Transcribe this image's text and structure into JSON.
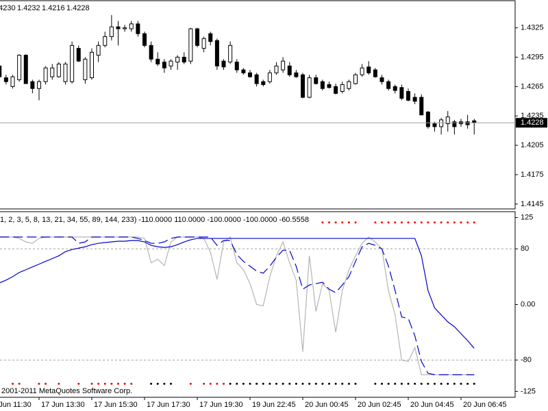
{
  "chart_data": [
    {
      "type": "candlestick",
      "header_values": [
        "1.4230",
        "1.4232",
        "1.4216",
        "1.4228"
      ],
      "categories": [
        "17 Jun 11:30",
        null,
        null,
        null,
        null,
        null,
        null,
        null,
        "17 Jun 13:30",
        null,
        null,
        null,
        null,
        null,
        null,
        null,
        "17 Jun 15:30",
        null,
        null,
        null,
        null,
        null,
        null,
        null,
        "17 Jun 17:30",
        null,
        null,
        null,
        null,
        null,
        null,
        null,
        "17 Jun 19:30",
        null,
        null,
        null,
        null,
        null,
        null,
        null,
        "19 Jun 22:45",
        null,
        null,
        null,
        null,
        null,
        null,
        null,
        "20 Jun 00:45",
        null,
        null,
        null,
        null,
        null,
        null,
        null,
        "20 Jun 02:45",
        null,
        null,
        null,
        null,
        null,
        null,
        null,
        "20 Jun 04:45",
        null,
        null,
        null,
        null,
        null,
        null,
        null,
        "20 Jun 06:45",
        null,
        null
      ],
      "candles": [
        null,
        null,
        [
          1.4286,
          1.4288,
          1.4274,
          1.4275
        ],
        [
          1.4274,
          1.4277,
          1.4267,
          1.427
        ],
        [
          1.4265,
          1.4277,
          1.4263,
          1.4275
        ],
        [
          1.4272,
          1.4298,
          1.427,
          1.4297
        ],
        [
          1.4297,
          1.4298,
          1.4268,
          1.4268
        ],
        [
          1.427,
          1.4272,
          1.4258,
          1.4263
        ],
        [
          1.4263,
          1.4272,
          1.4251,
          1.427
        ],
        [
          1.427,
          1.4286,
          1.4267,
          1.4284
        ],
        [
          1.4275,
          1.4288,
          1.4272,
          1.4284
        ],
        [
          1.4275,
          1.429,
          1.4274,
          1.4288
        ],
        [
          1.427,
          1.429,
          1.4267,
          1.4288
        ],
        [
          1.427,
          1.4311,
          1.4268,
          1.4307
        ],
        [
          1.4304,
          1.4307,
          1.429,
          1.4291
        ],
        [
          1.4272,
          1.4295,
          1.4268,
          1.4293
        ],
        [
          1.4274,
          1.4304,
          1.4272,
          1.43
        ],
        [
          1.4297,
          1.4311,
          1.429,
          1.4307
        ],
        [
          1.4307,
          1.4321,
          1.4305,
          1.4316
        ],
        [
          1.4316,
          1.4338,
          1.4312,
          1.4326
        ],
        [
          1.4326,
          1.4332,
          1.4307,
          1.4324
        ],
        [
          1.4324,
          1.4328,
          1.4321,
          1.4325
        ],
        [
          1.4324,
          1.4332,
          1.4321,
          1.4329
        ],
        [
          1.4329,
          1.4332,
          1.4316,
          1.4319
        ],
        [
          1.4319,
          1.4321,
          1.4305,
          1.4307
        ],
        [
          1.4307,
          1.4311,
          1.429,
          1.4293
        ],
        [
          1.4293,
          1.43,
          1.4286,
          1.4288
        ],
        [
          1.429,
          1.4293,
          1.4279,
          1.4284
        ],
        [
          1.4286,
          1.4293,
          1.4282,
          1.4291
        ],
        [
          1.429,
          1.4297,
          1.4282,
          1.4295
        ],
        [
          1.4295,
          1.43,
          1.4288,
          1.429
        ],
        [
          1.4291,
          1.4325,
          1.4288,
          1.4324
        ],
        [
          1.4324,
          1.4325,
          1.4305,
          1.4307
        ],
        [
          1.4304,
          1.4316,
          1.43,
          1.4314
        ],
        [
          1.4319,
          1.4321,
          1.4307,
          1.4311
        ],
        [
          1.4312,
          1.4314,
          1.4282,
          1.4286
        ],
        [
          1.4291,
          1.4293,
          1.4282,
          1.4285
        ],
        [
          1.429,
          1.4311,
          1.4288,
          1.4307
        ],
        [
          1.429,
          1.4293,
          1.4279,
          1.4282
        ],
        [
          1.4282,
          1.4284,
          1.4277,
          1.4279
        ],
        [
          1.4279,
          1.4282,
          1.4274,
          1.4275
        ],
        [
          1.4277,
          1.4279,
          1.4265,
          1.4268
        ],
        [
          1.427,
          1.4272,
          1.4265,
          1.4267
        ],
        [
          1.427,
          1.4282,
          1.4268,
          1.4279
        ],
        [
          1.4279,
          1.429,
          1.4277,
          1.4286
        ],
        [
          1.4282,
          1.4295,
          1.4279,
          1.4291
        ],
        [
          1.4286,
          1.429,
          1.4275,
          1.4277
        ],
        [
          1.4279,
          1.4282,
          1.4274,
          1.4275
        ],
        [
          1.4277,
          1.4279,
          1.4253,
          1.4254
        ],
        [
          1.4254,
          1.4277,
          1.4253,
          1.4274
        ],
        [
          1.4274,
          1.4277,
          1.4267,
          1.4268
        ],
        [
          1.427,
          1.4272,
          1.4261,
          1.4263
        ],
        [
          1.4267,
          1.427,
          1.4263,
          1.4264
        ],
        [
          1.4265,
          1.4268,
          1.4257,
          1.4258
        ],
        [
          1.426,
          1.427,
          1.4258,
          1.4267
        ],
        [
          1.4263,
          1.4272,
          1.4261,
          1.427
        ],
        [
          1.4268,
          1.4279,
          1.4267,
          1.4277
        ],
        [
          1.4277,
          1.4288,
          1.4275,
          1.4284
        ],
        [
          1.4285,
          1.4291,
          1.4277,
          1.4279
        ],
        [
          1.4282,
          1.4284,
          1.4274,
          1.4275
        ],
        [
          1.4274,
          1.4277,
          1.4267,
          1.427
        ],
        [
          1.427,
          1.4272,
          1.4261,
          1.4263
        ],
        [
          1.4265,
          1.4267,
          1.4258,
          1.4261
        ],
        [
          1.4264,
          1.4267,
          1.4251,
          1.4253
        ],
        [
          1.426,
          1.4263,
          1.425,
          1.4251
        ],
        [
          1.4254,
          1.4258,
          1.4247,
          1.425
        ],
        [
          1.4254,
          1.4257,
          1.4236,
          1.4236
        ],
        [
          1.4239,
          1.424,
          1.4222,
          1.4224
        ],
        [
          1.4227,
          1.4229,
          1.4219,
          1.4224
        ],
        [
          1.4224,
          1.4233,
          1.4216,
          1.4231
        ],
        [
          1.4227,
          1.424,
          1.4219,
          1.4234
        ],
        [
          1.4229,
          1.4231,
          1.4216,
          1.4224
        ],
        [
          1.4229,
          1.4232,
          1.4224,
          1.4227
        ],
        [
          1.4229,
          1.4236,
          1.4222,
          1.4226
        ],
        [
          1.423,
          1.4232,
          1.4216,
          1.4228
        ]
      ],
      "up_color": "#ffffff",
      "down_color": "#000000",
      "last_price_line": true,
      "ylim": [
        1.414,
        1.4352
      ],
      "yticks": [
        1.4325,
        1.4295,
        1.4265,
        1.4235,
        1.4205,
        1.4175,
        1.4145
      ]
    },
    {
      "type": "line",
      "title": "1, 2, 3, 5, 8, 13, 21, 34, 55, 89, 144, 233) -110.0000 110.0000 -100.0000 -100.0000 -60.5558",
      "footer": "2001-2011 MetaQuotes Software Corp.",
      "series": [
        {
          "color": "#b4b4b4",
          "dash": false,
          "values": [
            null,
            null,
            97,
            97,
            97,
            95,
            90,
            88,
            95,
            97,
            97,
            97,
            97,
            97,
            97,
            97,
            97,
            97,
            97,
            97,
            97,
            97,
            97,
            97,
            95,
            60,
            65,
            56,
            90,
            97,
            97,
            97,
            97,
            95,
            75,
            36,
            90,
            97,
            60,
            50,
            30,
            0,
            -2,
            40,
            70,
            90,
            60,
            35,
            -68,
            70,
            -10,
            30,
            20,
            -40,
            20,
            50,
            70,
            88,
            97,
            90,
            80,
            20,
            -15,
            -80,
            -82,
            -62,
            -101,
            -101,
            -101,
            -101,
            -101,
            -101,
            -101,
            -101,
            -101
          ]
        },
        {
          "color": "#0000cc",
          "dash": true,
          "values": [
            null,
            null,
            97,
            97,
            97,
            97,
            97,
            97,
            97,
            97,
            97,
            97,
            97,
            97,
            88,
            90,
            97,
            97,
            97,
            97,
            97,
            97,
            97,
            95,
            92,
            88,
            88,
            90,
            95,
            97,
            97,
            97,
            97,
            97,
            97,
            85,
            92,
            92,
            72,
            62,
            55,
            48,
            45,
            55,
            68,
            78,
            78,
            55,
            22,
            28,
            30,
            32,
            22,
            17,
            28,
            40,
            62,
            83,
            88,
            85,
            80,
            55,
            20,
            -18,
            -20,
            -45,
            -82,
            -99,
            -101,
            -101,
            -101,
            -101,
            -101,
            -101,
            -101
          ]
        },
        {
          "color": "#0000cc",
          "dash": false,
          "values": [
            null,
            null,
            31,
            35,
            40,
            46,
            50,
            54,
            58,
            62,
            66,
            70,
            76,
            79,
            81,
            83,
            86,
            88,
            89,
            90,
            91,
            91,
            92,
            92,
            90,
            85,
            83,
            82,
            83,
            86,
            90,
            93,
            95,
            95,
            95,
            95,
            95,
            95,
            95,
            95,
            95,
            95,
            95,
            95,
            95,
            95,
            95,
            95,
            95,
            95,
            95,
            95,
            95,
            95,
            95,
            95,
            95,
            95,
            95,
            95,
            95,
            95,
            95,
            95,
            95,
            95,
            70,
            20,
            -5,
            -15,
            -25,
            -32,
            -42,
            -52,
            -63
          ]
        }
      ],
      "dots": [
        {
          "color": "#ff0000",
          "values": [
            null,
            null,
            null,
            null,
            null,
            null,
            null,
            null,
            null,
            null,
            null,
            null,
            null,
            null,
            null,
            null,
            null,
            null,
            null,
            null,
            null,
            null,
            null,
            null,
            null,
            null,
            null,
            null,
            null,
            null,
            null,
            null,
            null,
            null,
            null,
            null,
            null,
            null,
            null,
            null,
            null,
            null,
            null,
            null,
            null,
            null,
            null,
            null,
            null,
            null,
            null,
            118,
            118,
            118,
            118,
            118,
            118,
            null,
            null,
            118,
            118,
            118,
            118,
            118,
            118,
            118,
            118,
            118,
            118,
            118,
            118,
            118,
            118,
            118,
            118
          ]
        },
        {
          "color": "#ff0000",
          "values": [
            null,
            null,
            null,
            null,
            -114,
            -114,
            null,
            null,
            -114,
            -114,
            null,
            -114,
            null,
            null,
            -114,
            null,
            -114,
            -114,
            -114,
            -114,
            -114,
            -114,
            -114,
            null,
            null,
            null,
            null,
            null,
            null,
            null,
            null,
            -114,
            null,
            -114,
            -114,
            -114,
            -114,
            null,
            null,
            null,
            null,
            null,
            null,
            null,
            null,
            null,
            null,
            null,
            null,
            null,
            null,
            null,
            null,
            null,
            null,
            null,
            null,
            null,
            null,
            null,
            null,
            null,
            null,
            null,
            null,
            null,
            null,
            null,
            null,
            null,
            null,
            null,
            null,
            null,
            null
          ]
        },
        {
          "color": "#000000",
          "values": [
            null,
            null,
            null,
            null,
            null,
            null,
            null,
            null,
            null,
            null,
            null,
            null,
            null,
            null,
            null,
            null,
            null,
            null,
            null,
            null,
            null,
            null,
            null,
            null,
            null,
            -114,
            -114,
            -114,
            -114,
            null,
            null,
            null,
            null,
            null,
            null,
            null,
            null,
            -114,
            -114,
            -114,
            -114,
            -114,
            -114,
            -114,
            -114,
            -114,
            -114,
            -114,
            -114,
            -114,
            -114,
            -114,
            -114,
            -114,
            -114,
            -114,
            -114,
            null,
            null,
            -114,
            -114,
            -114,
            -114,
            -114,
            -114,
            -114,
            -114,
            -114,
            -114,
            -114,
            -114,
            -114,
            -114,
            -114,
            -114
          ]
        }
      ],
      "levels": [
        80,
        -80
      ],
      "ylim": [
        -133.5,
        132.5
      ],
      "yticks": [
        125,
        80,
        {
          "value": 0,
          "label": "0.00"
        },
        -80,
        -125
      ]
    }
  ]
}
